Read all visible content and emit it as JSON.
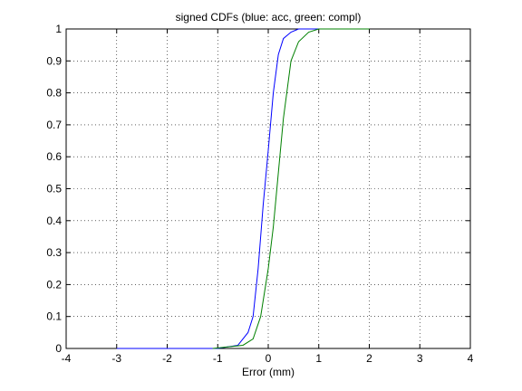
{
  "chart_data": {
    "type": "line",
    "title": "signed CDFs (blue: acc, green: compl)",
    "x_label": "Error (mm)",
    "series": [
      {
        "color": "#0000ff",
        "x": [
          -3,
          -1,
          -0.6,
          -0.4,
          -0.3,
          -0.2,
          -0.1,
          0,
          0.1,
          0.2,
          0.3,
          0.45,
          0.6,
          2
        ],
        "values": [
          0,
          0,
          0.01,
          0.05,
          0.1,
          0.25,
          0.45,
          0.62,
          0.8,
          0.92,
          0.97,
          0.99,
          1,
          1
        ]
      },
      {
        "color": "#008000",
        "x": [
          -1.1,
          -0.5,
          -0.3,
          -0.15,
          0,
          0.1,
          0.2,
          0.3,
          0.45,
          0.6,
          0.8,
          1,
          2
        ],
        "values": [
          0,
          0.01,
          0.03,
          0.1,
          0.25,
          0.38,
          0.55,
          0.72,
          0.9,
          0.96,
          0.99,
          1,
          1
        ]
      }
    ],
    "xlim": [
      -4,
      4
    ],
    "xticks": [
      -4,
      -3,
      -2,
      -1,
      0,
      1,
      2,
      3,
      4
    ],
    "ylim": [
      0,
      1
    ],
    "yticks": [
      0,
      0.1,
      0.2,
      0.3,
      0.4,
      0.5,
      0.6,
      0.7,
      0.8,
      0.9,
      1
    ],
    "grid": true
  }
}
